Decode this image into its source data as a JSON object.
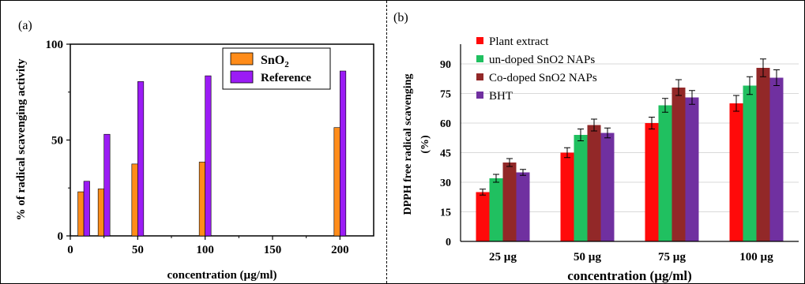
{
  "chart_data": [
    {
      "panel_label": "(a)",
      "type": "bar",
      "xlabel": "concentration (µg/ml)",
      "ylabel": "% of radical scavenging activity",
      "xlim": [
        0,
        225
      ],
      "ylim": [
        0,
        100
      ],
      "x_ticks": [
        0,
        50,
        100,
        150,
        200
      ],
      "y_ticks": [
        0,
        50,
        100
      ],
      "legend_position": "top-right",
      "series": [
        {
          "name": "SnO",
          "name_sub": "2",
          "color": "#ff8c1a",
          "x": [
            10,
            25,
            50,
            100,
            200
          ],
          "values": [
            23,
            24.5,
            37.5,
            38.5,
            56.5
          ]
        },
        {
          "name": "Reference",
          "color": "#9b1cf5",
          "x": [
            10,
            25,
            50,
            100,
            200
          ],
          "values": [
            28.5,
            53,
            80.5,
            83.5,
            86
          ]
        }
      ]
    },
    {
      "panel_label": "(b)",
      "type": "bar",
      "xlabel": "concentration (µg/ml)",
      "ylabel": "DPPH free radical scavenging (%)",
      "ylabel_lines": [
        "DPPH free radical scavenging",
        "(%)"
      ],
      "categories": [
        "25 µg",
        "50 µg",
        "75 µg",
        "100 µg"
      ],
      "ylim": [
        0,
        100
      ],
      "y_ticks": [
        0,
        15,
        30,
        45,
        60,
        75,
        90
      ],
      "legend_position": "top-left",
      "series": [
        {
          "name": "Plant extract",
          "color": "#ff0a0a",
          "values": [
            25,
            45,
            60,
            70
          ],
          "errors": [
            1.5,
            2.5,
            3,
            4
          ]
        },
        {
          "name": "un-doped SnO2 NAPs",
          "color": "#20c060",
          "values": [
            32,
            54,
            69,
            79
          ],
          "errors": [
            2,
            3,
            3.5,
            4.5
          ]
        },
        {
          "name": "Co-doped SnO2 NAPs",
          "color": "#922828",
          "values": [
            40,
            59,
            78,
            88
          ],
          "errors": [
            2,
            3,
            4,
            4.5
          ]
        },
        {
          "name": "BHT",
          "color": "#7030a0",
          "values": [
            35,
            55,
            73,
            83
          ],
          "errors": [
            1.5,
            2.5,
            3.5,
            4
          ]
        }
      ]
    }
  ]
}
